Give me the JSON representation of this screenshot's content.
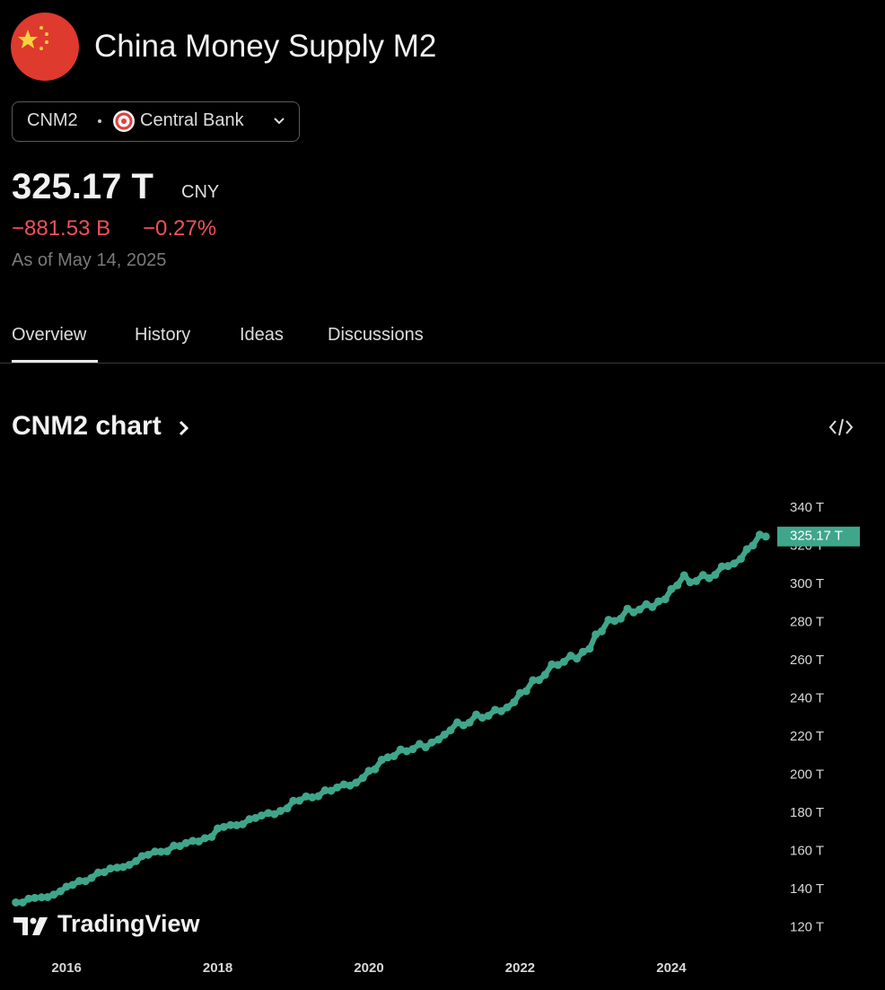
{
  "header": {
    "title": "China Money Supply M2",
    "symbol": "CNM2",
    "source": "Central Bank",
    "price": "325.17 T",
    "currency": "CNY",
    "change": "−881.53 B",
    "change_percent": "−0.27%",
    "as_of": "As of May 14, 2025"
  },
  "tabs": [
    "Overview",
    "History",
    "Ideas",
    "Discussions"
  ],
  "chart_heading": "CNM2 chart",
  "watermark": "TradingView",
  "chart_data": {
    "type": "line",
    "color": "#3fa68b",
    "x": [
      2015.33,
      2015.42,
      2015.5,
      2015.58,
      2015.67,
      2015.75,
      2015.83,
      2015.92,
      2016,
      2016.08,
      2016.17,
      2016.25,
      2016.33,
      2016.42,
      2016.5,
      2016.58,
      2016.67,
      2016.75,
      2016.83,
      2016.92,
      2017,
      2017.08,
      2017.17,
      2017.25,
      2017.33,
      2017.42,
      2017.5,
      2017.58,
      2017.67,
      2017.75,
      2017.83,
      2017.92,
      2018,
      2018.08,
      2018.17,
      2018.25,
      2018.33,
      2018.42,
      2018.5,
      2018.58,
      2018.67,
      2018.75,
      2018.83,
      2018.92,
      2019,
      2019.08,
      2019.17,
      2019.25,
      2019.33,
      2019.42,
      2019.5,
      2019.58,
      2019.67,
      2019.75,
      2019.83,
      2019.92,
      2020,
      2020.08,
      2020.17,
      2020.25,
      2020.33,
      2020.42,
      2020.5,
      2020.58,
      2020.67,
      2020.75,
      2020.83,
      2020.92,
      2021,
      2021.08,
      2021.17,
      2021.25,
      2021.33,
      2021.42,
      2021.5,
      2021.58,
      2021.67,
      2021.75,
      2021.83,
      2021.92,
      2022,
      2022.08,
      2022.17,
      2022.25,
      2022.33,
      2022.42,
      2022.5,
      2022.58,
      2022.67,
      2022.75,
      2022.83,
      2022.92,
      2023,
      2023.08,
      2023.17,
      2023.25,
      2023.33,
      2023.42,
      2023.5,
      2023.58,
      2023.67,
      2023.75,
      2023.83,
      2023.92,
      2024,
      2024.08,
      2024.17,
      2024.25,
      2024.33,
      2024.42,
      2024.5,
      2024.58,
      2024.67,
      2024.75,
      2024.83,
      2024.92,
      2025,
      2025.08,
      2025.17,
      2025.25
    ],
    "values": [
      133.3,
      133.3,
      135.3,
      135.7,
      136.0,
      136.1,
      137.4,
      139.2,
      141.6,
      142.5,
      144.6,
      144.5,
      146.2,
      149.0,
      149.2,
      151.1,
      151.6,
      151.9,
      153.0,
      155.0,
      157.6,
      158.3,
      160.0,
      159.9,
      160.1,
      163.1,
      162.9,
      164.5,
      165.6,
      165.3,
      167.0,
      167.7,
      172.1,
      172.9,
      173.9,
      173.8,
      174.3,
      177.0,
      177.6,
      178.9,
      180.2,
      179.6,
      181.3,
      182.7,
      186.6,
      186.7,
      188.9,
      188.4,
      189.0,
      192.1,
      191.9,
      193.6,
      195.2,
      194.6,
      196.1,
      198.6,
      202.3,
      203.1,
      208.1,
      209.4,
      210.0,
      213.5,
      212.6,
      213.7,
      216.4,
      214.7,
      217.2,
      218.7,
      221.3,
      223.6,
      227.7,
      226.2,
      227.6,
      231.8,
      230.2,
      231.2,
      234.3,
      233.6,
      235.6,
      238.3,
      243.1,
      244.1,
      249.8,
      249.9,
      252.7,
      258.1,
      257.8,
      259.5,
      262.7,
      261.2,
      264.7,
      266.4,
      273.8,
      275.5,
      281.5,
      280.9,
      282.1,
      287.3,
      285.4,
      286.9,
      289.7,
      288.2,
      291.2,
      292.3,
      297.6,
      299.6,
      304.8,
      301.2,
      301.8,
      305.0,
      303.3,
      305.1,
      309.5,
      309.7,
      311.0,
      313.5,
      318.5,
      320.5,
      326.1,
      325.17
    ],
    "last_label": "325.17 T",
    "xlim": [
      2015.12,
      2025.39
    ],
    "xticks": [
      2016,
      2018,
      2020,
      2022,
      2024
    ],
    "ylim": [
      110,
      350
    ],
    "yticks": [
      {
        "value": 120,
        "label": "120 T"
      },
      {
        "value": 140,
        "label": "140 T"
      },
      {
        "value": 160,
        "label": "160 T"
      },
      {
        "value": 180,
        "label": "180 T"
      },
      {
        "value": 200,
        "label": "200 T"
      },
      {
        "value": 220,
        "label": "220 T"
      },
      {
        "value": 240,
        "label": "240 T"
      },
      {
        "value": 260,
        "label": "260 T"
      },
      {
        "value": 280,
        "label": "280 T"
      },
      {
        "value": 300,
        "label": "300 T"
      },
      {
        "value": 320,
        "label": "320 T"
      },
      {
        "value": 340,
        "label": "340 T"
      }
    ]
  }
}
